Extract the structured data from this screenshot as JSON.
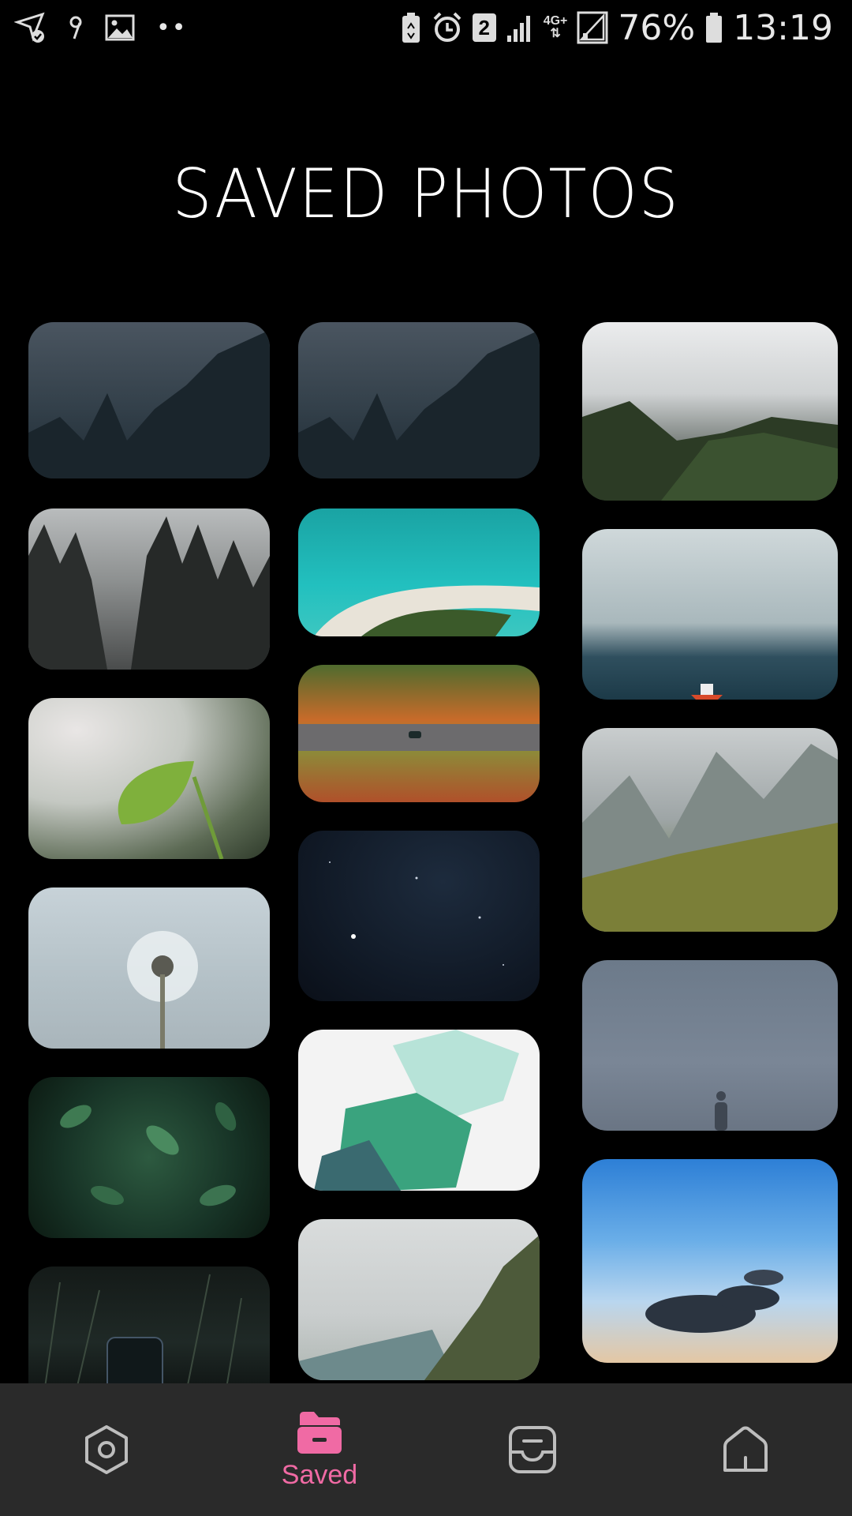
{
  "status_bar": {
    "sim_badge": "2",
    "network": "4G+",
    "battery": "76%",
    "time": "13:19",
    "icons": [
      "location-check-icon",
      "notification-icon",
      "image-icon",
      "more-dots-icon",
      "battery-saver-icon",
      "alarm-icon",
      "sim-2-icon",
      "signal-icon",
      "signal-2-icon",
      "battery-icon"
    ]
  },
  "page": {
    "title": "SAVED PHOTOS"
  },
  "photos": [
    {
      "name": "photo-foggy-forest-1",
      "column": 1
    },
    {
      "name": "photo-misty-pines",
      "column": 1
    },
    {
      "name": "photo-green-leaf",
      "column": 1
    },
    {
      "name": "photo-dandelion",
      "column": 1
    },
    {
      "name": "photo-green-leaves",
      "column": 1
    },
    {
      "name": "photo-dark-grass",
      "column": 1
    },
    {
      "name": "photo-foggy-forest-2",
      "column": 2
    },
    {
      "name": "photo-turquoise-beach",
      "column": 2
    },
    {
      "name": "photo-autumn-road",
      "column": 2
    },
    {
      "name": "photo-night-sky",
      "column": 2
    },
    {
      "name": "photo-green-fabric",
      "column": 2
    },
    {
      "name": "photo-rocky-mountain",
      "column": 2
    },
    {
      "name": "photo-cloudy-hills",
      "column": 3
    },
    {
      "name": "photo-sea-boat",
      "column": 3
    },
    {
      "name": "photo-mountain-valley",
      "column": 3
    },
    {
      "name": "photo-fog-figure",
      "column": 3
    },
    {
      "name": "photo-sky-cloud",
      "column": 3
    }
  ],
  "bottom_nav": {
    "active_color": "#f06aa4",
    "items": [
      {
        "icon": "hexagon-icon",
        "label": ""
      },
      {
        "icon": "folder-icon",
        "label": "Saved"
      },
      {
        "icon": "inbox-icon",
        "label": ""
      },
      {
        "icon": "home-icon",
        "label": ""
      }
    ]
  }
}
